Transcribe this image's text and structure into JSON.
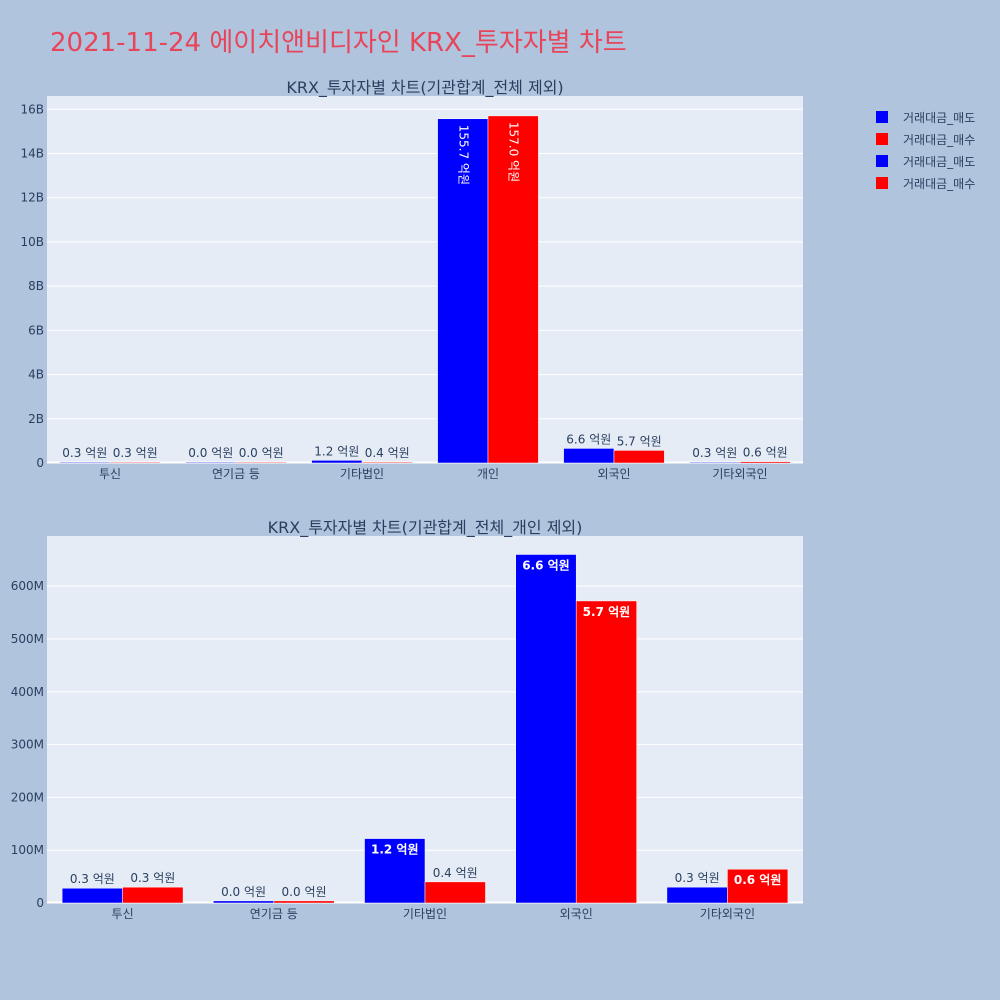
{
  "page": {
    "title": "2021-11-24 에이치앤비디자인 KRX_투자자별 차트"
  },
  "colors": {
    "sell": "#0000ff",
    "buy": "#ff0000",
    "plot_bg": "#e5ecf6",
    "paper_bg": "#b0c4de",
    "text": "#2a3f5f",
    "title": "#e8455a"
  },
  "legend": {
    "items": [
      {
        "label": "거래대금_매도",
        "color": "#0000ff"
      },
      {
        "label": "거래대금_매수",
        "color": "#ff0000"
      },
      {
        "label": "거래대금_매도",
        "color": "#0000ff"
      },
      {
        "label": "거래대금_매수",
        "color": "#ff0000"
      }
    ]
  },
  "chart_data": [
    {
      "type": "bar",
      "title": "KRX_투자자별 차트(기관합계_전체 제외)",
      "categories": [
        "투신",
        "연기금 등",
        "기타법인",
        "개인",
        "외국인",
        "기타외국인"
      ],
      "series": [
        {
          "name": "거래대금_매도",
          "values": [
            30000000,
            4000000,
            120000000,
            15570000000,
            660000000,
            30000000
          ],
          "labels": [
            "0.3 억원",
            "0.0 억원",
            "1.2 억원",
            "155.7 억원",
            "6.6 억원",
            "0.3 억원"
          ]
        },
        {
          "name": "거래대금_매수",
          "values": [
            30000000,
            4000000,
            40000000,
            15700000000,
            570000000,
            60000000
          ],
          "labels": [
            "0.3 억원",
            "0.0 억원",
            "0.4 억원",
            "157.0 억원",
            "5.7 억원",
            "0.6 억원"
          ]
        }
      ],
      "ylim": [
        0,
        16600000000
      ],
      "yticks": [
        0,
        2000000000,
        4000000000,
        6000000000,
        8000000000,
        10000000000,
        12000000000,
        14000000000,
        16000000000
      ],
      "yticklabels": [
        "0",
        "2B",
        "4B",
        "6B",
        "8B",
        "10B",
        "12B",
        "14B",
        "16B"
      ],
      "grid": true
    },
    {
      "type": "bar",
      "title": "KRX_투자자별 차트(기관합계_전체_개인 제외)",
      "categories": [
        "투신",
        "연기금 등",
        "기타법인",
        "외국인",
        "기타외국인"
      ],
      "series": [
        {
          "name": "거래대금_매도",
          "values": [
            28000000,
            4000000,
            122000000,
            660000000,
            30000000
          ],
          "labels": [
            "0.3 억원",
            "0.0 억원",
            "1.2 억원",
            "6.6 억원",
            "0.3 억원"
          ]
        },
        {
          "name": "거래대금_매수",
          "values": [
            30000000,
            4000000,
            40000000,
            572000000,
            64000000
          ],
          "labels": [
            "0.3 억원",
            "0.0 억원",
            "0.4 억원",
            "5.7 억원",
            "0.6 억원"
          ]
        }
      ],
      "ylim": [
        0,
        695000000
      ],
      "yticks": [
        0,
        100000000,
        200000000,
        300000000,
        400000000,
        500000000,
        600000000
      ],
      "yticklabels": [
        "0",
        "100M",
        "200M",
        "300M",
        "400M",
        "500M",
        "600M"
      ],
      "grid": true
    }
  ]
}
